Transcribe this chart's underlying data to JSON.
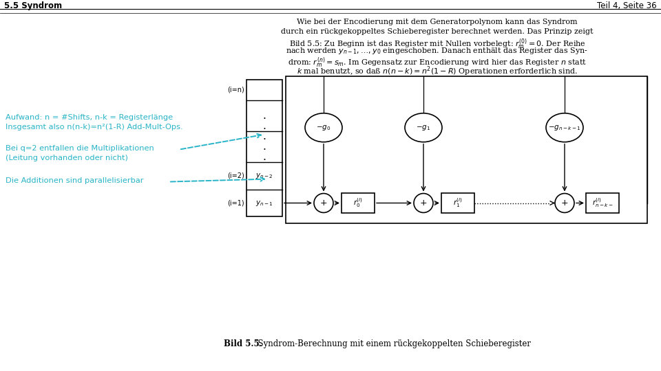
{
  "title_left": "5.5 Syndrom",
  "title_right": "Teil 4, Seite 36",
  "body_lines": [
    "Wie bei der Encodierung mit dem Generatorpolynom kann das Syndrom",
    "durch ein rückgekoppeltes Schieberegister berechnet werden. Das Prinzip zeigt",
    "Bild 5.5: Zu Beginn ist das Register mit Nullen vorbelegt: $r_m^{(0)} = 0$. Der Reihe",
    "nach werden $y_{n-1}, \\ldots, y_0$ eingeschoben. Danach enthält das Register das Syn-",
    "drom: $r_m^{(n)} = s_m$. Im Gegensatz zur Encodierung wird hier das Register $n$ statt",
    "$k$ mal benutzt, so daß $n(n - k) = n^2(1 - R)$ Operationen erforderlich sind."
  ],
  "ann1_l1": "Aufwand: n = #Shifts, n-k = Registerlänge",
  "ann1_l2": "Insgesamt also n(n-k)=n²(1-R) Add-Mult-Ops.",
  "ann2_l1": "Bei q=2 entfallen die Multiplikationen",
  "ann2_l2": "(Leitung vorhanden oder nicht)",
  "ann3": "Die Additionen sind parallelisierbar",
  "caption_bold": "Bild 5.5.",
  "caption_normal": "  Syndrom-Berechnung mit einem rückgekoppelten Schieberegister",
  "bg_color": "#ffffff",
  "black": "#000000",
  "cyan": "#28b4c8"
}
